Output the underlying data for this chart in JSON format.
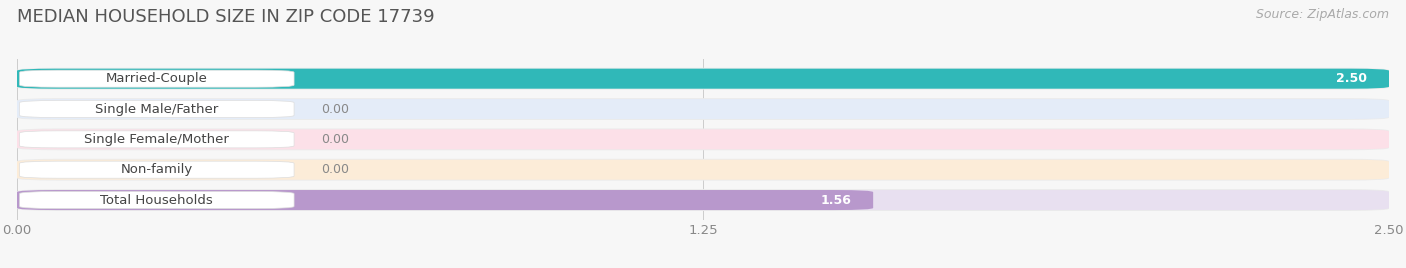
{
  "title": "MEDIAN HOUSEHOLD SIZE IN ZIP CODE 17739",
  "source": "Source: ZipAtlas.com",
  "categories": [
    "Married-Couple",
    "Single Male/Father",
    "Single Female/Mother",
    "Non-family",
    "Total Households"
  ],
  "values": [
    2.5,
    0.0,
    0.0,
    0.0,
    1.56
  ],
  "bar_colors": [
    "#30b8b8",
    "#9ab4e0",
    "#f07898",
    "#f0c890",
    "#b898cc"
  ],
  "bar_bg_colors": [
    "#e0f0f0",
    "#e4ecf8",
    "#fce0e8",
    "#fcecd8",
    "#e8e0f0"
  ],
  "row_bg_color": "#ebebeb",
  "xlim": [
    0,
    2.5
  ],
  "xticks": [
    0.0,
    1.25,
    2.5
  ],
  "xtick_labels": [
    "0.00",
    "1.25",
    "2.50"
  ],
  "value_labels": [
    "2.50",
    "0.00",
    "0.00",
    "0.00",
    "1.56"
  ],
  "background_color": "#f7f7f7",
  "title_fontsize": 13,
  "label_fontsize": 9.5,
  "value_fontsize": 9,
  "source_fontsize": 9,
  "title_color": "#555555",
  "label_text_color": "#444444",
  "value_color_on_bar": "white",
  "value_color_off_bar": "#888888",
  "grid_color": "#cccccc",
  "tick_color": "#888888"
}
